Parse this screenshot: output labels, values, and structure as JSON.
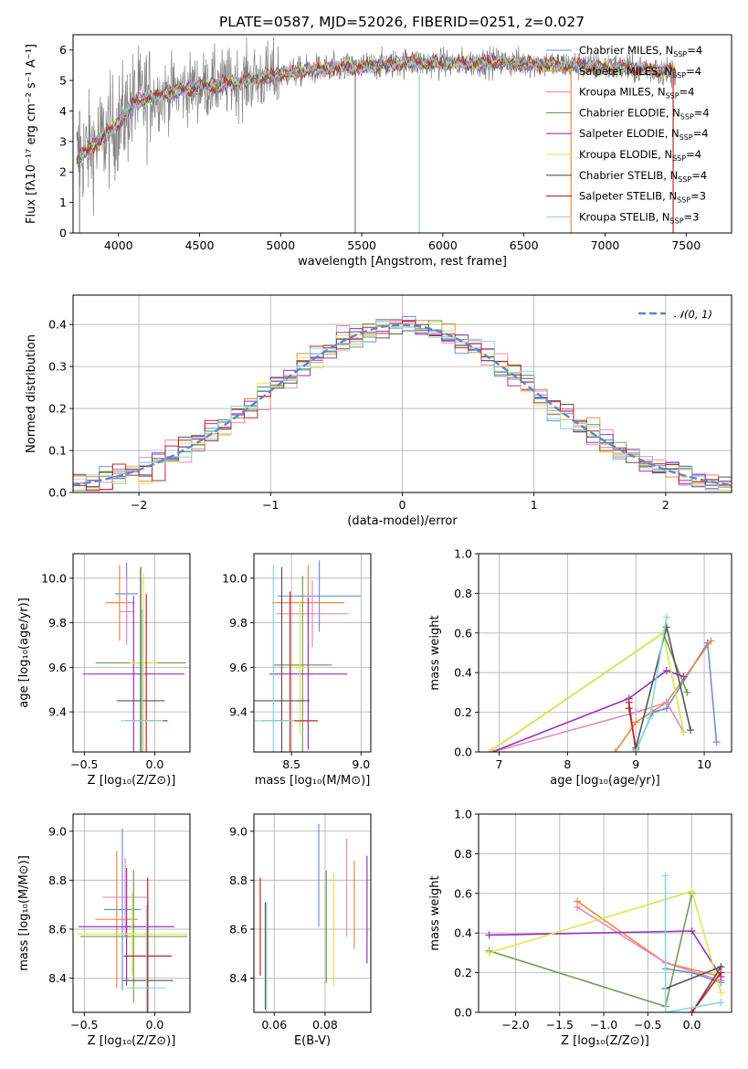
{
  "figure_title": "PLATE=0587, MJD=52026, FIBERID=0251, z=0.027",
  "colors": [
    "#6f8fde",
    "#ee8844",
    "#e98ab6",
    "#6f9f55",
    "#9a30c0",
    "#dbe84a",
    "#555555",
    "#cc2222",
    "#88d8e0"
  ],
  "chart_data": [
    {
      "id": "spectrum",
      "type": "line",
      "title": "PLATE=0587, MJD=52026, FIBERID=0251, z=0.027",
      "xlabel": "wavelength [Angstrom, rest frame]",
      "ylabel": "Flux [fλ10⁻¹⁷ erg cm⁻² s⁻¹ A⁻¹]",
      "xlim": [
        3720,
        7780
      ],
      "ylim": [
        0,
        6.5
      ],
      "xticks": [
        4000,
        4500,
        5000,
        5500,
        6000,
        6500,
        7000,
        7500
      ],
      "yticks": [
        0,
        1,
        2,
        3,
        4,
        5,
        6
      ],
      "grid": false,
      "legend": "top-right",
      "legend_entries": [
        {
          "label": "Chabrier MILES, N",
          "sub": "SSP",
          "suffix": "=4"
        },
        {
          "label": "Salpeter MILES, N",
          "sub": "SSP",
          "suffix": "=4"
        },
        {
          "label": "Kroupa MILES, N",
          "sub": "SSP",
          "suffix": "=4"
        },
        {
          "label": "Chabrier ELODIE, N",
          "sub": "SSP",
          "suffix": "=4"
        },
        {
          "label": "Salpeter ELODIE, N",
          "sub": "SSP",
          "suffix": "=4"
        },
        {
          "label": "Kroupa ELODIE, N",
          "sub": "SSP",
          "suffix": "=4"
        },
        {
          "label": "Chabrier STELIB, N",
          "sub": "SSP",
          "suffix": "=4"
        },
        {
          "label": "Salpeter STELIB, N",
          "sub": "SSP",
          "suffix": "=3"
        },
        {
          "label": "Kroupa STELIB, N",
          "sub": "SSP",
          "suffix": "=3"
        }
      ],
      "continuum": {
        "x": [
          3740,
          3900,
          4000,
          4100,
          4300,
          4500,
          4800,
          5000,
          5200,
          5500,
          5800,
          6000,
          6300,
          6600,
          7000,
          7400
        ],
        "y": [
          2.4,
          3.1,
          3.6,
          4.3,
          4.6,
          4.8,
          5.0,
          5.2,
          5.35,
          5.45,
          5.6,
          5.55,
          5.6,
          5.55,
          5.45,
          5.3
        ]
      }
    },
    {
      "id": "residuals",
      "type": "histogram",
      "xlabel": "(data-model)/error",
      "ylabel": "Normed distribution",
      "xlim": [
        -2.5,
        2.5
      ],
      "ylim": [
        0,
        0.47
      ],
      "xticks": [
        -2,
        -1,
        0,
        1,
        2
      ],
      "yticks": [
        0,
        0.1,
        0.2,
        0.3,
        0.4
      ],
      "grid": true,
      "legend": "top-right",
      "legend_label": "𝒩(0, 1)",
      "bin_width": 0.1
    },
    {
      "id": "age_vs_Z",
      "type": "errorbar",
      "xlabel": "Z [log₁₀(Z/Z⊙)]",
      "ylabel": "age  [log₁₀(age/yr)]",
      "xlim": [
        -0.58,
        0.25
      ],
      "ylim": [
        9.22,
        10.11
      ],
      "xticks": [
        -0.5,
        0.0
      ],
      "yticks": [
        9.4,
        9.6,
        9.8,
        10.0
      ],
      "grid": true,
      "points": [
        {
          "x": -0.2,
          "xerr": 0.08,
          "y": 9.93,
          "yerr": 0.14
        },
        {
          "x": -0.25,
          "xerr": 0.1,
          "y": 9.89,
          "yerr": 0.17
        },
        {
          "x": -0.2,
          "xerr": 0.05,
          "y": 9.85,
          "yerr": 0.15
        },
        {
          "x": -0.1,
          "xerr": 0.32,
          "y": 9.62,
          "yerr": 0.38
        },
        {
          "x": -0.15,
          "xerr": 0.36,
          "y": 9.57,
          "yerr": 0.35
        },
        {
          "x": -0.08,
          "xerr": 0.1,
          "y": 9.62,
          "yerr": 0.4
        },
        {
          "x": -0.1,
          "xerr": 0.17,
          "y": 9.45,
          "yerr": 0.6
        },
        {
          "x": -0.06,
          "xerr": 0.15,
          "y": 9.36,
          "yerr": 0.57
        },
        {
          "x": -0.09,
          "xerr": 0.15,
          "y": 9.36,
          "yerr": 0.5
        }
      ]
    },
    {
      "id": "age_vs_mass",
      "type": "errorbar",
      "xlabel": "mass [log₁₀(M/M⊙)]",
      "ylabel": "",
      "xlim": [
        8.23,
        9.07
      ],
      "ylim": [
        9.22,
        10.11
      ],
      "xticks": [
        8.5,
        9.0
      ],
      "yticks": [
        9.4,
        9.6,
        9.8,
        10.0
      ],
      "grid": true,
      "points": [
        {
          "x": 8.7,
          "xerr": 0.3,
          "y": 9.92,
          "yerr": 0.16
        },
        {
          "x": 8.62,
          "xerr": 0.26,
          "y": 9.89,
          "yerr": 0.17
        },
        {
          "x": 8.65,
          "xerr": 0.26,
          "y": 9.84,
          "yerr": 0.15
        },
        {
          "x": 8.58,
          "xerr": 0.21,
          "y": 9.61,
          "yerr": 0.4
        },
        {
          "x": 8.62,
          "xerr": 0.28,
          "y": 9.57,
          "yerr": 0.34
        },
        {
          "x": 8.56,
          "xerr": 0.06,
          "y": 9.6,
          "yerr": 0.3
        },
        {
          "x": 8.43,
          "xerr": 0.2,
          "y": 9.45,
          "yerr": 0.6
        },
        {
          "x": 8.49,
          "xerr": 0.2,
          "y": 9.36,
          "yerr": 0.58
        },
        {
          "x": 8.37,
          "xerr": 0.15,
          "y": 9.36,
          "yerr": 0.7
        }
      ]
    },
    {
      "id": "weight_vs_age",
      "type": "line",
      "xlabel": "age  [log₁₀(age/yr)]",
      "ylabel": "mass weight",
      "xlim": [
        6.7,
        10.4
      ],
      "ylim": [
        0,
        1
      ],
      "xticks": [
        7,
        8,
        9,
        10
      ],
      "yticks": [
        0.0,
        0.2,
        0.4,
        0.6,
        0.8,
        1.0
      ],
      "grid": true,
      "series": [
        {
          "x": [
            9.0,
            9.25,
            9.45,
            10.05,
            10.18
          ],
          "y": [
            0.01,
            0.2,
            0.22,
            0.55,
            0.05
          ]
        },
        {
          "x": [
            8.7,
            9.0,
            9.45,
            10.1
          ],
          "y": [
            0.0,
            0.15,
            0.25,
            0.56
          ]
        },
        {
          "x": [
            6.9,
            9.0,
            9.45,
            9.7
          ],
          "y": [
            0.0,
            0.2,
            0.25,
            0.1
          ]
        },
        {
          "x": [
            6.9,
            9.4,
            9.75
          ],
          "y": [
            0.01,
            0.6,
            0.3
          ]
        },
        {
          "x": [
            6.9,
            8.9,
            9.45,
            9.7
          ],
          "y": [
            0.0,
            0.27,
            0.41,
            0.38
          ]
        },
        {
          "x": [
            6.9,
            9.4,
            9.7
          ],
          "y": [
            0.01,
            0.6,
            0.1
          ]
        },
        {
          "x": [
            8.9,
            9.0,
            9.45,
            9.8
          ],
          "y": [
            0.22,
            0.02,
            0.63,
            0.11
          ]
        },
        {
          "x": [
            8.9,
            9.0
          ],
          "y": [
            0.25,
            0.0
          ]
        },
        {
          "x": [
            9.0,
            9.2,
            9.45
          ],
          "y": [
            0.0,
            0.17,
            0.68
          ]
        }
      ]
    },
    {
      "id": "mass_vs_Z",
      "type": "errorbar",
      "xlabel": "Z [log₁₀(Z/Z⊙)]",
      "ylabel": "mass [log₁₀(M/M⊙)]",
      "xlim": [
        -0.58,
        0.25
      ],
      "ylim": [
        8.26,
        9.07
      ],
      "xticks": [
        -0.5,
        0.0
      ],
      "yticks": [
        8.4,
        8.6,
        8.8,
        9.0
      ],
      "grid": true,
      "points": [
        {
          "x": -0.23,
          "xerr": 0.13,
          "y": 8.68,
          "yerr": 0.33
        },
        {
          "x": -0.27,
          "xerr": 0.15,
          "y": 8.64,
          "yerr": 0.28
        },
        {
          "x": -0.21,
          "xerr": 0.16,
          "y": 8.73,
          "yerr": 0.16
        },
        {
          "x": -0.15,
          "xerr": 0.38,
          "y": 8.57,
          "yerr": 0.27
        },
        {
          "x": -0.2,
          "xerr": 0.34,
          "y": 8.61,
          "yerr": 0.24
        },
        {
          "x": -0.16,
          "xerr": 0.39,
          "y": 8.58,
          "yerr": 0.17
        },
        {
          "x": -0.05,
          "xerr": 0.18,
          "y": 8.39,
          "yerr": 0.32
        },
        {
          "x": -0.05,
          "xerr": 0.17,
          "y": 8.49,
          "yerr": 0.32
        },
        {
          "x": -0.06,
          "xerr": 0.14,
          "y": 8.36,
          "yerr": 0.34
        }
      ]
    },
    {
      "id": "mass_vs_EBV",
      "type": "errorbar",
      "xlabel": "E(B-V)",
      "ylabel": "",
      "xlim": [
        0.052,
        0.098
      ],
      "ylim": [
        8.26,
        9.07
      ],
      "xticks": [
        0.06,
        0.08
      ],
      "yticks": [
        8.4,
        8.6,
        8.8,
        9.0
      ],
      "grid": true,
      "points": [
        {
          "x": 0.0775,
          "xerr": 0,
          "y": 8.82,
          "yerr": 0.21
        },
        {
          "x": 0.0915,
          "xerr": 0,
          "y": 8.7,
          "yerr": 0.18
        },
        {
          "x": 0.0885,
          "xerr": 0,
          "y": 8.77,
          "yerr": 0.2
        },
        {
          "x": 0.0805,
          "xerr": 0,
          "y": 8.61,
          "yerr": 0.23
        },
        {
          "x": 0.0965,
          "xerr": 0,
          "y": 8.68,
          "yerr": 0.22
        },
        {
          "x": 0.0835,
          "xerr": 0,
          "y": 8.6,
          "yerr": 0.23
        },
        {
          "x": 0.0565,
          "xerr": 0,
          "y": 8.49,
          "yerr": 0.22
        },
        {
          "x": 0.0545,
          "xerr": 0,
          "y": 8.61,
          "yerr": 0.2
        },
        {
          "x": 0.057,
          "xerr": 0,
          "y": 8.47,
          "yerr": 0.24
        }
      ]
    },
    {
      "id": "weight_vs_Z",
      "type": "line",
      "xlabel": "Z [log₁₀(Z/Z⊙)]",
      "ylabel": "mass weight",
      "xlim": [
        -2.42,
        0.45
      ],
      "ylim": [
        0,
        1
      ],
      "xticks": [
        -2.0,
        -1.5,
        -1.0,
        -0.5,
        0.0
      ],
      "yticks": [
        0.0,
        0.2,
        0.4,
        0.6,
        0.8,
        1.0
      ],
      "grid": true,
      "series": [
        {
          "x": [
            -0.3,
            0.0,
            0.33
          ],
          "y": [
            0.22,
            0.2,
            0.15
          ]
        },
        {
          "x": [
            -1.3,
            -0.3,
            0.33
          ],
          "y": [
            0.56,
            0.25,
            0.18
          ]
        },
        {
          "x": [
            -1.3,
            -0.3,
            0.33
          ],
          "y": [
            0.53,
            0.25,
            0.16
          ]
        },
        {
          "x": [
            -2.3,
            -0.3,
            0.0
          ],
          "y": [
            0.31,
            0.03,
            0.6
          ]
        },
        {
          "x": [
            -2.3,
            0.0,
            0.33
          ],
          "y": [
            0.39,
            0.41,
            0.18
          ]
        },
        {
          "x": [
            -2.3,
            0.0,
            0.33
          ],
          "y": [
            0.3,
            0.61,
            0.1
          ]
        },
        {
          "x": [
            -0.3,
            0.33,
            0.0
          ],
          "y": [
            0.12,
            0.23,
            0.0
          ]
        },
        {
          "x": [
            0.0,
            0.33
          ],
          "y": [
            0.0,
            0.2
          ]
        },
        {
          "x": [
            -0.3,
            -0.3,
            0.33
          ],
          "y": [
            0.69,
            0.0,
            0.05
          ]
        }
      ]
    }
  ]
}
